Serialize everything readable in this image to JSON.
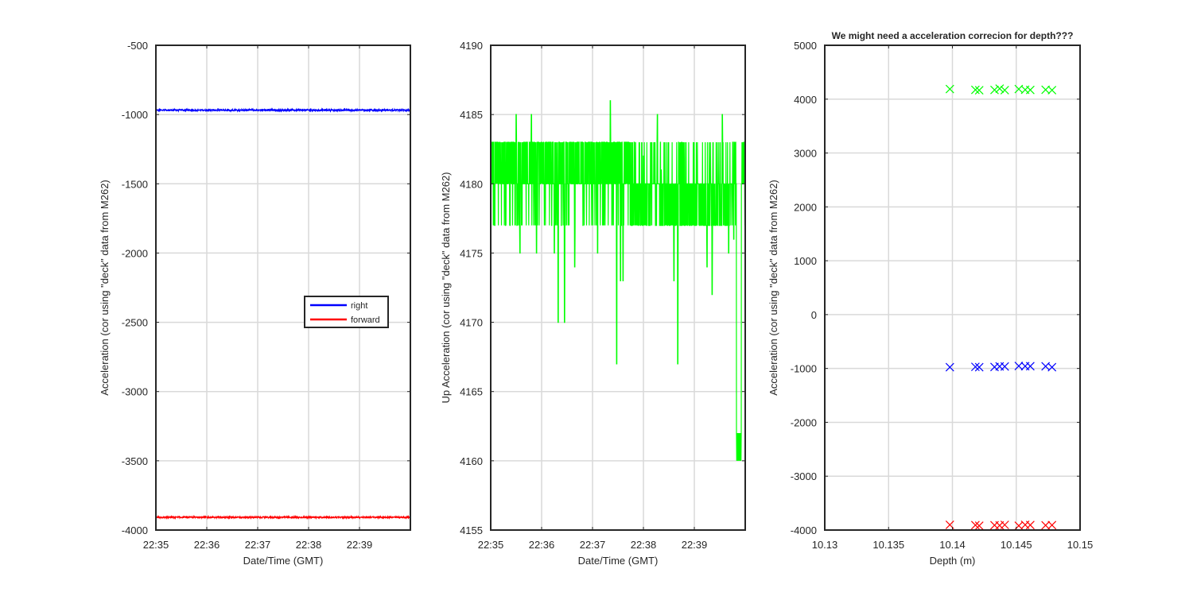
{
  "figure": {
    "background": "#ffffff",
    "grid_color": "#d9d9d9",
    "axis_color": "#262626"
  },
  "chart_data": [
    {
      "type": "line",
      "title": "",
      "xlabel": "Date/Time (GMT)",
      "ylabel": "Acceleration (cor using \"deck\" data from M262)",
      "xlim": [
        "22:35",
        "22:40"
      ],
      "ylim": [
        -4000,
        -500
      ],
      "xticks": [
        "22:35",
        "22:36",
        "22:37",
        "22:38",
        "22:39"
      ],
      "yticks": [
        -4000,
        -3500,
        -3000,
        -2500,
        -2000,
        -1500,
        -1000,
        -500
      ],
      "grid": true,
      "legend": "center-right",
      "series": [
        {
          "name": "right",
          "color": "#0000ff",
          "mean": -968,
          "noise": 6
        },
        {
          "name": "forward",
          "color": "#ff0000",
          "mean": -3908,
          "noise": 5
        }
      ]
    },
    {
      "type": "line",
      "title": "",
      "xlabel": "Date/Time (GMT)",
      "ylabel": "Up Acceleration (cor using \"deck\" data from M262)",
      "xlim": [
        "22:35",
        "22:40"
      ],
      "ylim": [
        4155,
        4190
      ],
      "xticks": [
        "22:35",
        "22:36",
        "22:37",
        "22:38",
        "22:39"
      ],
      "yticks": [
        4155,
        4160,
        4165,
        4170,
        4175,
        4180,
        4185,
        4190
      ],
      "grid": true,
      "series": [
        {
          "color": "#00ff00",
          "levels": [
            4177,
            4180,
            4183
          ],
          "min": 4160,
          "max": 4186
        }
      ]
    },
    {
      "type": "scatter",
      "title": "We might need a acceleration correcion for depth???",
      "xlabel": "Depth (m)",
      "ylabel": "Acceleration (cor using \"deck\" data from M262)",
      "xlim": [
        10.13,
        10.15
      ],
      "ylim": [
        -4000,
        5000
      ],
      "xticks": [
        "10.13",
        "10.135",
        "10.14",
        "10.145",
        "10.15"
      ],
      "yticks": [
        -4000,
        -3000,
        -2000,
        -1000,
        0,
        1000,
        2000,
        3000,
        4000,
        5000
      ],
      "grid": true,
      "marker": "x",
      "x": [
        10.1398,
        10.1418,
        10.1421,
        10.1433,
        10.1437,
        10.1441,
        10.1452,
        10.1457,
        10.1461,
        10.1473,
        10.1478
      ],
      "series": [
        {
          "color": "#00ff00",
          "y": 4180
        },
        {
          "color": "#0000ff",
          "y": -968
        },
        {
          "color": "#ff0000",
          "y": -3908
        }
      ]
    }
  ]
}
